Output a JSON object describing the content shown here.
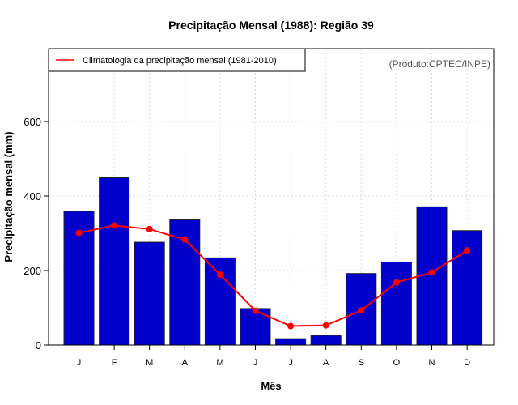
{
  "chart_data": {
    "type": "bar",
    "title": "Precipitação Mensal (1988): Região 39",
    "xlabel": "Mês",
    "ylabel": "Precipitação mensal (mm)",
    "ylim": [
      0,
      800
    ],
    "yticks": [
      0,
      200,
      400,
      600
    ],
    "categories": [
      "J",
      "F",
      "M",
      "A",
      "M",
      "J",
      "J",
      "A",
      "S",
      "O",
      "N",
      "D"
    ],
    "grid": true,
    "legend_position": "top-left",
    "annotation": "(Produto:CPTEC/INPE)",
    "series": [
      {
        "name": "Precipitação mensal (1988)",
        "type": "bar",
        "color": "#0000cd",
        "values": [
          359,
          449,
          276,
          338,
          234,
          98,
          17,
          26,
          192,
          223,
          371,
          307
        ]
      },
      {
        "name": "Climatologia da precipitação mensal (1981-2010)",
        "type": "line",
        "color": "#ff0000",
        "values": [
          301,
          321,
          311,
          283,
          189,
          92,
          51,
          53,
          93,
          168,
          195,
          254
        ]
      }
    ]
  }
}
